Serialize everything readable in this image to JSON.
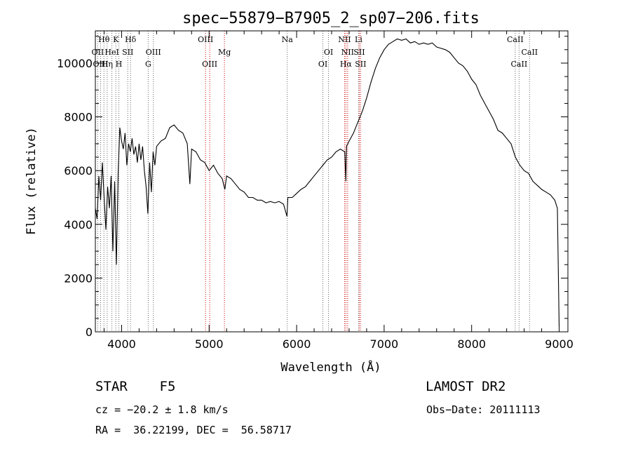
{
  "chart_data": {
    "type": "line",
    "title": "spec−55879−B7905_2_sp07−206.fits",
    "xlabel": "Wavelength (Å)",
    "ylabel": "Flux (relative)",
    "xlim": [
      3700,
      9100
    ],
    "ylim": [
      0,
      11200
    ],
    "xticks": [
      4000,
      5000,
      6000,
      7000,
      8000,
      9000
    ],
    "yticks": [
      0,
      2000,
      4000,
      6000,
      8000,
      10000
    ],
    "grid": false,
    "series": [
      {
        "x": [
          3700,
          3720,
          3740,
          3760,
          3780,
          3800,
          3820,
          3840,
          3860,
          3880,
          3900,
          3920,
          3940,
          3960,
          3980,
          4000,
          4020,
          4040,
          4060,
          4080,
          4100,
          4120,
          4140,
          4160,
          4180,
          4200,
          4220,
          4240,
          4260,
          4280,
          4300,
          4320,
          4340,
          4360,
          4380,
          4400,
          4450,
          4500,
          4550,
          4600,
          4650,
          4700,
          4750,
          4780,
          4800,
          4850,
          4900,
          4950,
          5000,
          5050,
          5100,
          5150,
          5180,
          5200,
          5250,
          5300,
          5350,
          5400,
          5450,
          5500,
          5550,
          5600,
          5650,
          5700,
          5750,
          5800,
          5850,
          5890,
          5900,
          5950,
          6000,
          6050,
          6100,
          6150,
          6200,
          6250,
          6300,
          6350,
          6400,
          6450,
          6500,
          6550,
          6563,
          6570,
          6600,
          6650,
          6700,
          6750,
          6800,
          6850,
          6900,
          6950,
          7000,
          7050,
          7100,
          7150,
          7200,
          7250,
          7300,
          7350,
          7400,
          7450,
          7500,
          7550,
          7600,
          7650,
          7700,
          7750,
          7800,
          7850,
          7900,
          7950,
          8000,
          8050,
          8100,
          8150,
          8200,
          8250,
          8300,
          8350,
          8400,
          8450,
          8500,
          8550,
          8600,
          8650,
          8700,
          8750,
          8800,
          8850,
          8900,
          8950,
          8980,
          9000
        ],
        "y": [
          4600,
          4200,
          5800,
          4900,
          6300,
          5000,
          3800,
          5400,
          4600,
          5800,
          3000,
          5600,
          2500,
          5900,
          7600,
          7100,
          6800,
          7400,
          6200,
          7000,
          6700,
          7200,
          6600,
          6900,
          6300,
          7000,
          6400,
          6900,
          6000,
          5400,
          4400,
          6300,
          5200,
          6700,
          6200,
          6900,
          7100,
          7200,
          7600,
          7700,
          7500,
          7400,
          7000,
          5500,
          6800,
          6700,
          6400,
          6300,
          6000,
          6200,
          5900,
          5700,
          5300,
          5800,
          5700,
          5500,
          5300,
          5200,
          5000,
          5000,
          4900,
          4900,
          4800,
          4850,
          4800,
          4850,
          4750,
          4300,
          5000,
          5000,
          5150,
          5300,
          5400,
          5600,
          5800,
          6000,
          6200,
          6400,
          6500,
          6700,
          6800,
          6700,
          5600,
          6900,
          7100,
          7400,
          7800,
          8200,
          8700,
          9300,
          9800,
          10200,
          10500,
          10700,
          10800,
          10900,
          10850,
          10900,
          10750,
          10800,
          10700,
          10750,
          10700,
          10750,
          10600,
          10550,
          10500,
          10400,
          10200,
          10000,
          9900,
          9700,
          9400,
          9200,
          8800,
          8500,
          8200,
          7900,
          7500,
          7400,
          7200,
          7000,
          6500,
          6200,
          6000,
          5900,
          5600,
          5450,
          5300,
          5200,
          5100,
          4900,
          4600,
          200
        ]
      }
    ],
    "line_markers": [
      {
        "label": "Hθ",
        "x": 3798,
        "row": 0,
        "color": "#666666"
      },
      {
        "label": "Hη",
        "x": 3835,
        "row": 2,
        "color": "#666666"
      },
      {
        "label": "K",
        "x": 3934,
        "row": 0,
        "color": "#666666"
      },
      {
        "label": "H",
        "x": 3969,
        "row": 2,
        "color": "#666666"
      },
      {
        "label": "HeI",
        "x": 3889,
        "row": 1,
        "color": "#666666"
      },
      {
        "label": "SII",
        "x": 4070,
        "row": 1,
        "color": "#666666"
      },
      {
        "label": "OII",
        "x": 3727,
        "row": 1,
        "color": "#666666"
      },
      {
        "label": "OIII",
        "x": 3760,
        "row": 2,
        "color": "#666666"
      },
      {
        "label": "Hδ",
        "x": 4102,
        "row": 0,
        "color": "#666666"
      },
      {
        "label": "OIII",
        "x": 4363,
        "row": 1,
        "color": "#666666"
      },
      {
        "label": "G",
        "x": 4304,
        "row": 2,
        "color": "#666666"
      },
      {
        "label": "OIII",
        "x": 4959,
        "row": 0,
        "color": "#cc0000"
      },
      {
        "label": "OIII",
        "x": 5007,
        "row": 2,
        "color": "#cc0000"
      },
      {
        "label": "Mg",
        "x": 5175,
        "row": 1,
        "color": "#cc0000"
      },
      {
        "label": "Na",
        "x": 5893,
        "row": 0,
        "color": "#666666"
      },
      {
        "label": "OI",
        "x": 6300,
        "row": 2,
        "color": "#666666"
      },
      {
        "label": "OI",
        "x": 6364,
        "row": 1,
        "color": "#666666"
      },
      {
        "label": "NII",
        "x": 6548,
        "row": 0,
        "color": "#cc0000"
      },
      {
        "label": "NII",
        "x": 6583,
        "row": 1,
        "color": "#cc0000"
      },
      {
        "label": "Hα",
        "x": 6563,
        "row": 2,
        "color": "#cc0000"
      },
      {
        "label": "Li",
        "x": 6708,
        "row": 0,
        "color": "#666666"
      },
      {
        "label": "SII",
        "x": 6716,
        "row": 1,
        "color": "#cc0000"
      },
      {
        "label": "SII",
        "x": 6731,
        "row": 2,
        "color": "#cc0000"
      },
      {
        "label": "CaII",
        "x": 8498,
        "row": 0,
        "color": "#666666"
      },
      {
        "label": "CaII",
        "x": 8542,
        "row": 2,
        "color": "#666666"
      },
      {
        "label": "CaII",
        "x": 8662,
        "row": 1,
        "color": "#666666"
      }
    ]
  },
  "info": {
    "class_line": "STAR    F5",
    "cz_line": "cz = −20.2 ± 1.8 km/s",
    "radec_line": "RA =  36.22199, DEC =  56.58717",
    "survey": "LAMOST DR2",
    "obs_date": "Obs−Date: 20111113"
  }
}
